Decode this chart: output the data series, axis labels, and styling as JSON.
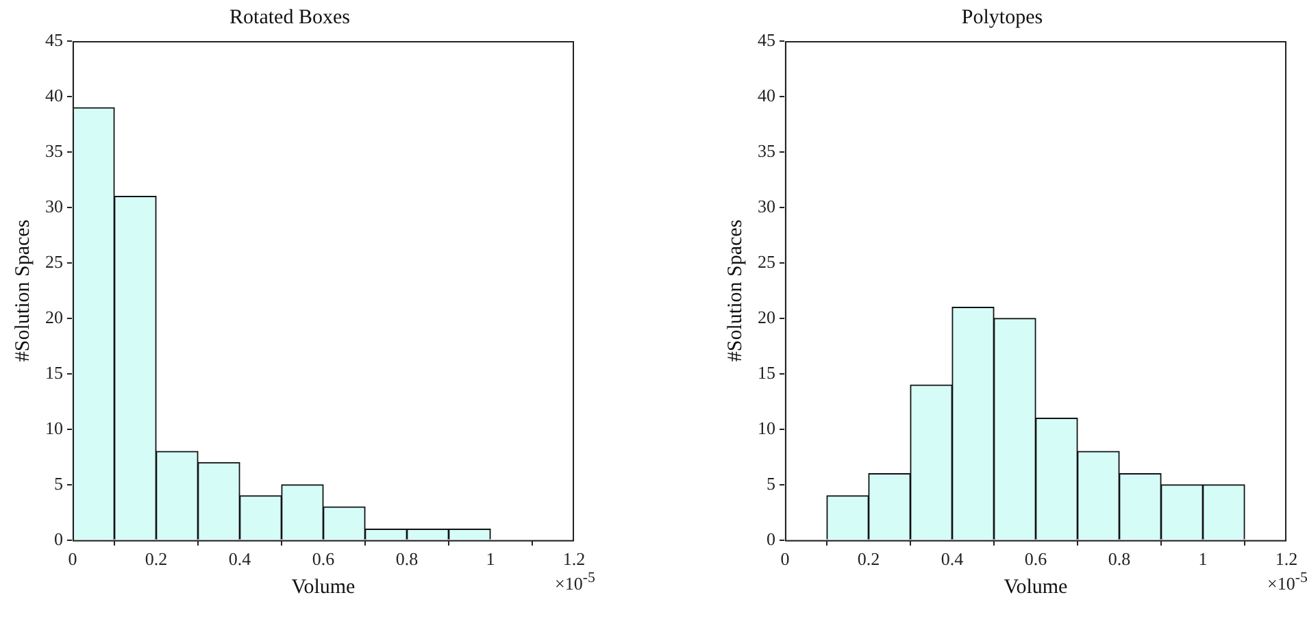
{
  "chart_data": [
    {
      "type": "histogram",
      "title": "Rotated Boxes",
      "xlabel": "Volume",
      "ylabel": "#Solution Spaces",
      "bins": [
        0,
        0.1,
        0.2,
        0.3,
        0.4,
        0.5,
        0.6,
        0.7,
        0.8,
        0.9,
        1.0
      ],
      "values": [
        39,
        31,
        8,
        7,
        4,
        5,
        3,
        1,
        1,
        1
      ],
      "color": "#d6fcf8",
      "xlim": [
        0,
        1.2
      ],
      "xticks": [
        0,
        0.2,
        0.4,
        0.6,
        0.8,
        1,
        1.2
      ],
      "ylim": [
        0,
        45
      ],
      "yticks": [
        0,
        5,
        10,
        15,
        20,
        25,
        30,
        35,
        40,
        45
      ],
      "annotations": [
        "×10$^{-5}$"
      ]
    },
    {
      "type": "histogram",
      "title": "Polytopes",
      "xlabel": "Volume",
      "ylabel": "#Solution Spaces",
      "bins": [
        0.1,
        0.2,
        0.3,
        0.4,
        0.5,
        0.6,
        0.7,
        0.8,
        0.9,
        1.0,
        1.1
      ],
      "values": [
        4,
        6,
        14,
        21,
        20,
        11,
        8,
        6,
        5,
        5
      ],
      "color": "#d6fcf8",
      "xlim": [
        0,
        1.2
      ],
      "xticks": [
        0,
        0.2,
        0.4,
        0.6,
        0.8,
        1,
        1.2
      ],
      "ylim": [
        0,
        45
      ],
      "yticks": [
        0,
        5,
        10,
        15,
        20,
        25,
        30,
        35,
        40,
        45
      ],
      "annotations": [
        "×10$^{-5}$"
      ]
    }
  ]
}
